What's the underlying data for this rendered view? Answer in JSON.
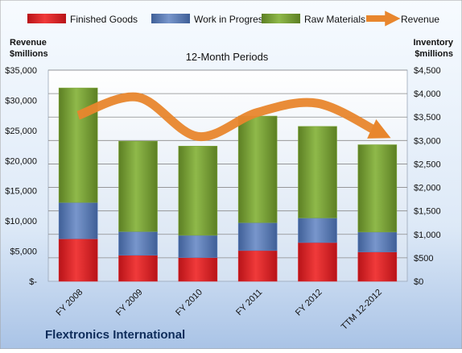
{
  "chart_data": {
    "type": "bar",
    "subtitle": "12-Month Periods",
    "company": "Flextronics International",
    "left_axis_label": [
      "Revenue",
      "$millions"
    ],
    "right_axis_label": [
      "Inventory",
      "$millions"
    ],
    "categories": [
      "FY 2008",
      "FY 2009",
      "FY 2010",
      "FY 2011",
      "FY 2012",
      "TTM 12-2012"
    ],
    "stacked": true,
    "series": [
      {
        "name": "Finished Goods",
        "color": "#e0262a",
        "values": [
          905,
          555,
          505,
          655,
          825,
          625
        ]
      },
      {
        "name": "Work in Progress",
        "color": "#5b7fbd",
        "values": [
          775,
          505,
          475,
          595,
          525,
          425
        ]
      },
      {
        "name": "Raw Materials",
        "color": "#7fa83a",
        "values": [
          2440,
          1925,
          1900,
          2270,
          1950,
          1860
        ]
      }
    ],
    "line_series": {
      "name": "Revenue",
      "color": "#e8862d",
      "values": [
        27500,
        30500,
        24000,
        28000,
        29500,
        24800
      ]
    },
    "left_axis": {
      "min": 0,
      "max": 35000,
      "step": 5000,
      "ticks": [
        "$-",
        "$5,000",
        "$10,000",
        "$15,000",
        "$20,000",
        "$25,000",
        "$30,000",
        "$35,000"
      ]
    },
    "right_axis": {
      "min": 0,
      "max": 4500,
      "step": 500,
      "ticks": [
        "$0",
        "$500",
        "$1,000",
        "$1,500",
        "$2,000",
        "$2,500",
        "$3,000",
        "$3,500",
        "$4,000",
        "$4,500"
      ]
    },
    "grid": true,
    "legend_position": "top"
  }
}
